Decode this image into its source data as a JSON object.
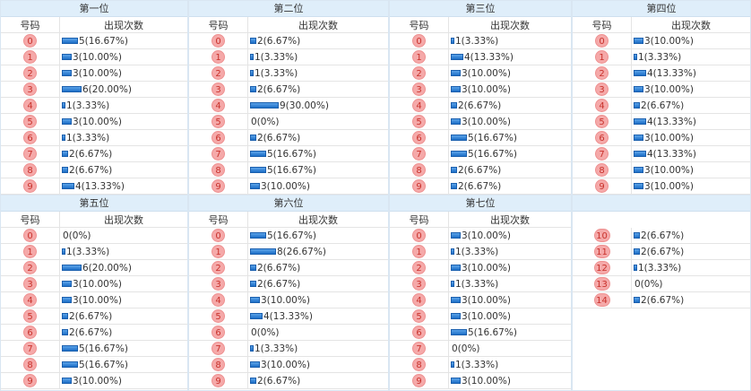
{
  "headers": {
    "number": "号码",
    "count": "出现次数"
  },
  "panels": [
    {
      "title": "第一位",
      "rows": [
        {
          "n": "0",
          "c": 5,
          "t": "5(16.67%)"
        },
        {
          "n": "1",
          "c": 3,
          "t": "3(10.00%)"
        },
        {
          "n": "2",
          "c": 3,
          "t": "3(10.00%)"
        },
        {
          "n": "3",
          "c": 6,
          "t": "6(20.00%)"
        },
        {
          "n": "4",
          "c": 1,
          "t": "1(3.33%)"
        },
        {
          "n": "5",
          "c": 3,
          "t": "3(10.00%)"
        },
        {
          "n": "6",
          "c": 1,
          "t": "1(3.33%)"
        },
        {
          "n": "7",
          "c": 2,
          "t": "2(6.67%)"
        },
        {
          "n": "8",
          "c": 2,
          "t": "2(6.67%)"
        },
        {
          "n": "9",
          "c": 4,
          "t": "4(13.33%)"
        }
      ]
    },
    {
      "title": "第二位",
      "rows": [
        {
          "n": "0",
          "c": 2,
          "t": "2(6.67%)"
        },
        {
          "n": "1",
          "c": 1,
          "t": "1(3.33%)"
        },
        {
          "n": "2",
          "c": 1,
          "t": "1(3.33%)"
        },
        {
          "n": "3",
          "c": 2,
          "t": "2(6.67%)"
        },
        {
          "n": "4",
          "c": 9,
          "t": "9(30.00%)"
        },
        {
          "n": "5",
          "c": 0,
          "t": "0(0%)"
        },
        {
          "n": "6",
          "c": 2,
          "t": "2(6.67%)"
        },
        {
          "n": "7",
          "c": 5,
          "t": "5(16.67%)"
        },
        {
          "n": "8",
          "c": 5,
          "t": "5(16.67%)"
        },
        {
          "n": "9",
          "c": 3,
          "t": "3(10.00%)"
        }
      ]
    },
    {
      "title": "第三位",
      "rows": [
        {
          "n": "0",
          "c": 1,
          "t": "1(3.33%)"
        },
        {
          "n": "1",
          "c": 4,
          "t": "4(13.33%)"
        },
        {
          "n": "2",
          "c": 3,
          "t": "3(10.00%)"
        },
        {
          "n": "3",
          "c": 3,
          "t": "3(10.00%)"
        },
        {
          "n": "4",
          "c": 2,
          "t": "2(6.67%)"
        },
        {
          "n": "5",
          "c": 3,
          "t": "3(10.00%)"
        },
        {
          "n": "6",
          "c": 5,
          "t": "5(16.67%)"
        },
        {
          "n": "7",
          "c": 5,
          "t": "5(16.67%)"
        },
        {
          "n": "8",
          "c": 2,
          "t": "2(6.67%)"
        },
        {
          "n": "9",
          "c": 2,
          "t": "2(6.67%)"
        }
      ]
    },
    {
      "title": "第四位",
      "rows": [
        {
          "n": "0",
          "c": 3,
          "t": "3(10.00%)"
        },
        {
          "n": "1",
          "c": 1,
          "t": "1(3.33%)"
        },
        {
          "n": "2",
          "c": 4,
          "t": "4(13.33%)"
        },
        {
          "n": "3",
          "c": 3,
          "t": "3(10.00%)"
        },
        {
          "n": "4",
          "c": 2,
          "t": "2(6.67%)"
        },
        {
          "n": "5",
          "c": 4,
          "t": "4(13.33%)"
        },
        {
          "n": "6",
          "c": 3,
          "t": "3(10.00%)"
        },
        {
          "n": "7",
          "c": 4,
          "t": "4(13.33%)"
        },
        {
          "n": "8",
          "c": 3,
          "t": "3(10.00%)"
        },
        {
          "n": "9",
          "c": 3,
          "t": "3(10.00%)"
        }
      ]
    },
    {
      "title": "第五位",
      "rows": [
        {
          "n": "0",
          "c": 0,
          "t": "0(0%)"
        },
        {
          "n": "1",
          "c": 1,
          "t": "1(3.33%)"
        },
        {
          "n": "2",
          "c": 6,
          "t": "6(20.00%)"
        },
        {
          "n": "3",
          "c": 3,
          "t": "3(10.00%)"
        },
        {
          "n": "4",
          "c": 3,
          "t": "3(10.00%)"
        },
        {
          "n": "5",
          "c": 2,
          "t": "2(6.67%)"
        },
        {
          "n": "6",
          "c": 2,
          "t": "2(6.67%)"
        },
        {
          "n": "7",
          "c": 5,
          "t": "5(16.67%)"
        },
        {
          "n": "8",
          "c": 5,
          "t": "5(16.67%)"
        },
        {
          "n": "9",
          "c": 3,
          "t": "3(10.00%)"
        }
      ]
    },
    {
      "title": "第六位",
      "rows": [
        {
          "n": "0",
          "c": 5,
          "t": "5(16.67%)"
        },
        {
          "n": "1",
          "c": 8,
          "t": "8(26.67%)"
        },
        {
          "n": "2",
          "c": 2,
          "t": "2(6.67%)"
        },
        {
          "n": "3",
          "c": 2,
          "t": "2(6.67%)"
        },
        {
          "n": "4",
          "c": 3,
          "t": "3(10.00%)"
        },
        {
          "n": "5",
          "c": 4,
          "t": "4(13.33%)"
        },
        {
          "n": "6",
          "c": 0,
          "t": "0(0%)"
        },
        {
          "n": "7",
          "c": 1,
          "t": "1(3.33%)"
        },
        {
          "n": "8",
          "c": 3,
          "t": "3(10.00%)"
        },
        {
          "n": "9",
          "c": 2,
          "t": "2(6.67%)"
        }
      ]
    },
    {
      "title": "第七位",
      "rows": [
        {
          "n": "0",
          "c": 3,
          "t": "3(10.00%)"
        },
        {
          "n": "1",
          "c": 1,
          "t": "1(3.33%)"
        },
        {
          "n": "2",
          "c": 3,
          "t": "3(10.00%)"
        },
        {
          "n": "3",
          "c": 1,
          "t": "1(3.33%)"
        },
        {
          "n": "4",
          "c": 3,
          "t": "3(10.00%)"
        },
        {
          "n": "5",
          "c": 3,
          "t": "3(10.00%)"
        },
        {
          "n": "6",
          "c": 5,
          "t": "5(16.67%)"
        },
        {
          "n": "7",
          "c": 0,
          "t": "0(0%)"
        },
        {
          "n": "8",
          "c": 1,
          "t": "1(3.33%)"
        },
        {
          "n": "9",
          "c": 3,
          "t": "3(10.00%)"
        }
      ]
    },
    {
      "title": "",
      "rows": [
        {
          "n": "10",
          "c": 2,
          "t": "2(6.67%)"
        },
        {
          "n": "11",
          "c": 2,
          "t": "2(6.67%)"
        },
        {
          "n": "12",
          "c": 1,
          "t": "1(3.33%)"
        },
        {
          "n": "13",
          "c": 0,
          "t": "0(0%)"
        },
        {
          "n": "14",
          "c": 2,
          "t": "2(6.67%)"
        }
      ]
    }
  ],
  "colors": {
    "ball": "#f5a9a9",
    "ball_text": "#c8322c",
    "bar": "#1d6fc7",
    "header_bg": "#dfeefa"
  }
}
